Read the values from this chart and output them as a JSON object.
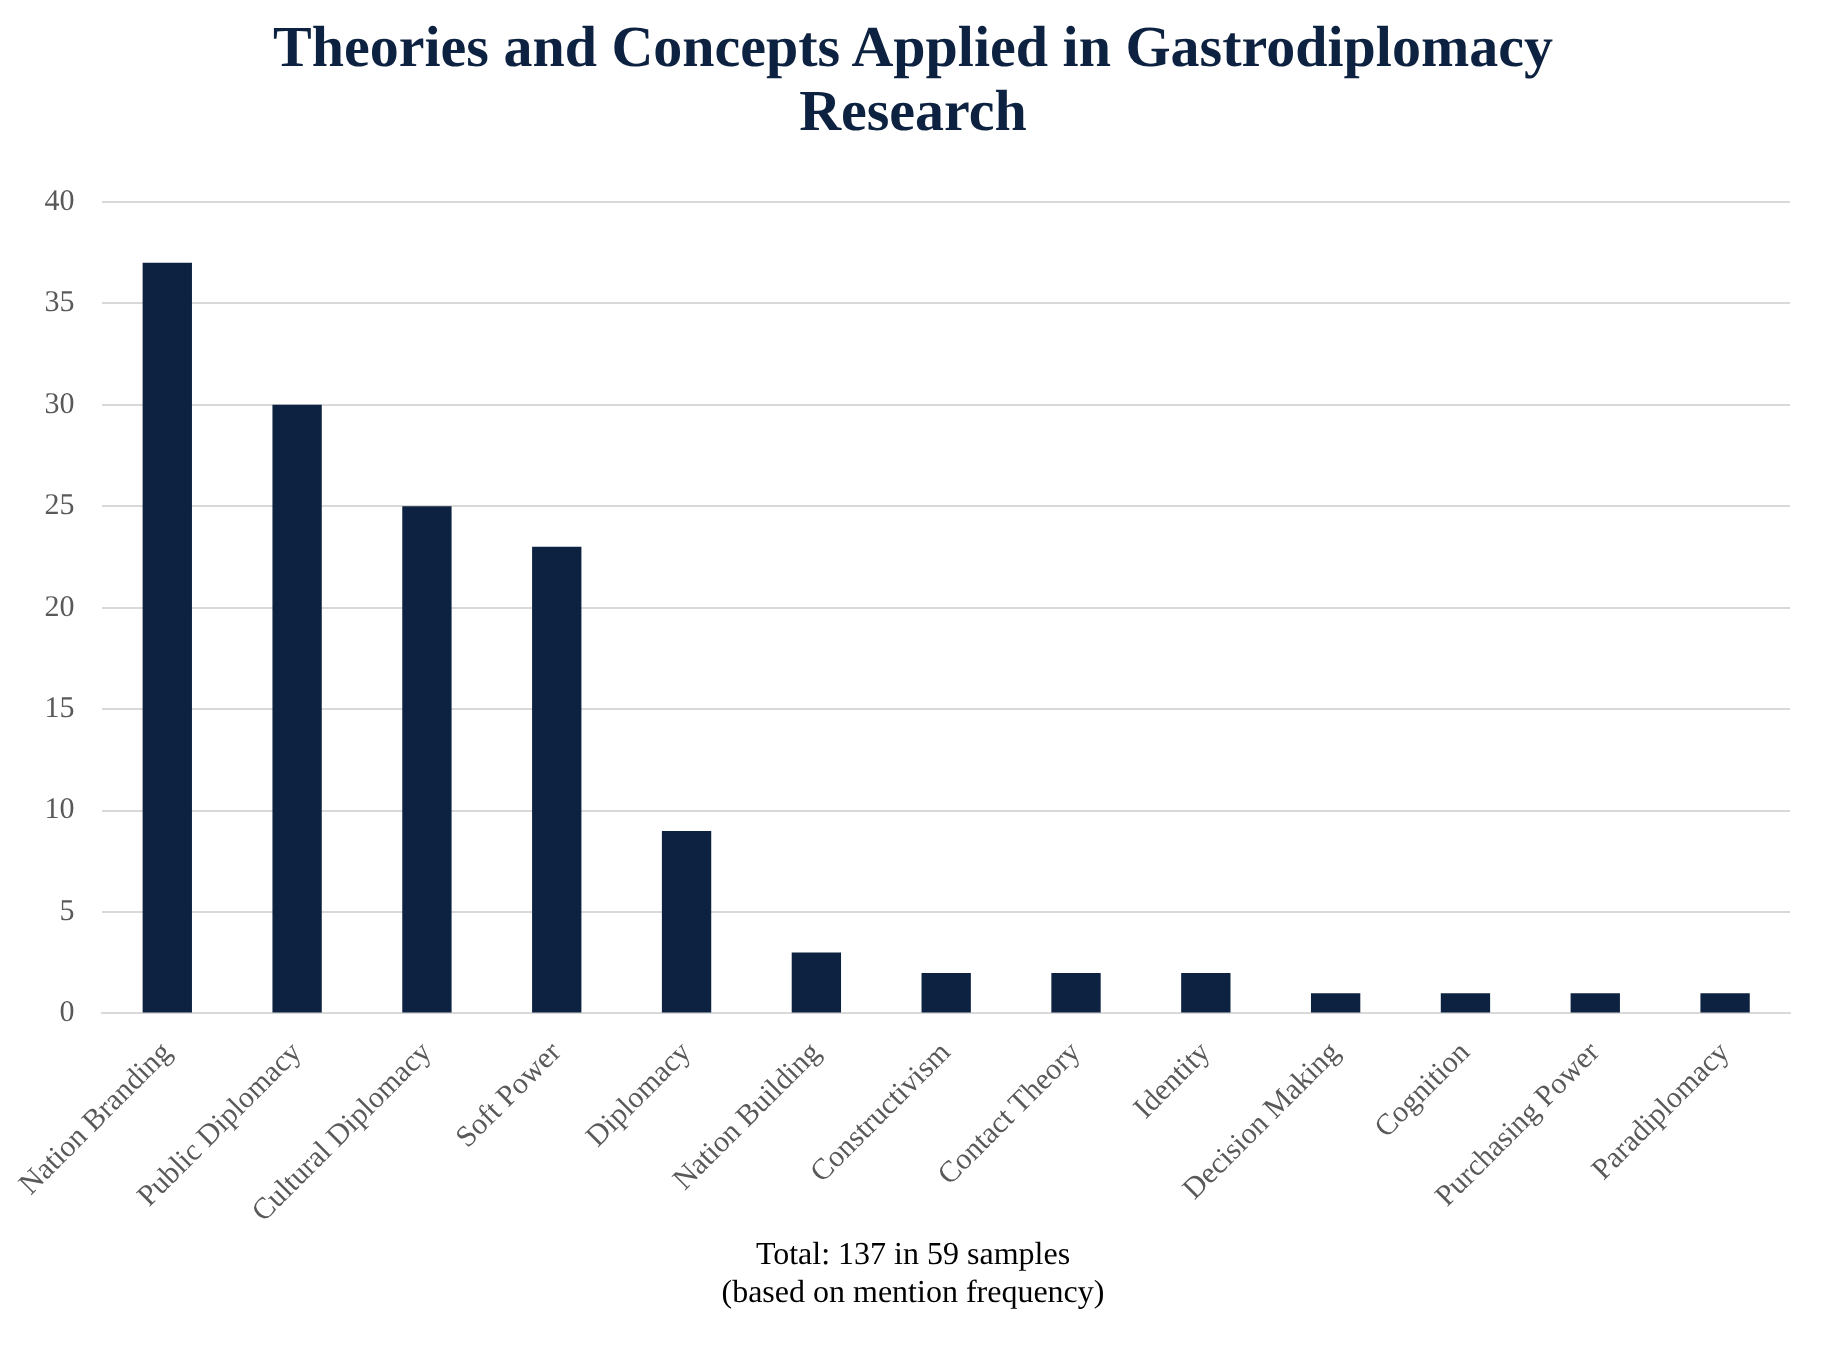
{
  "chart_data": {
    "type": "bar",
    "title": "Theories and Concepts Applied in Gastrodiplomacy Research",
    "categories": [
      "Nation Branding",
      "Public Diplomacy",
      "Cultural Diplomacy",
      "Soft Power",
      "Diplomacy",
      "Nation Building",
      "Constructivism",
      "Contact Theory",
      "Identity",
      "Decision Making",
      "Cognition",
      "Purchasing Power",
      "Paradiplomacy"
    ],
    "values": [
      37,
      30,
      25,
      23,
      9,
      3,
      2,
      2,
      2,
      1,
      1,
      1,
      1
    ],
    "color": "#0d2240",
    "ylim": [
      0,
      40
    ],
    "yticks": [
      0,
      5,
      10,
      15,
      20,
      25,
      30,
      35,
      40
    ],
    "grid": "y",
    "annotations": [
      "Total: 137 in 59 samples",
      "(based on mention frequency)"
    ]
  }
}
